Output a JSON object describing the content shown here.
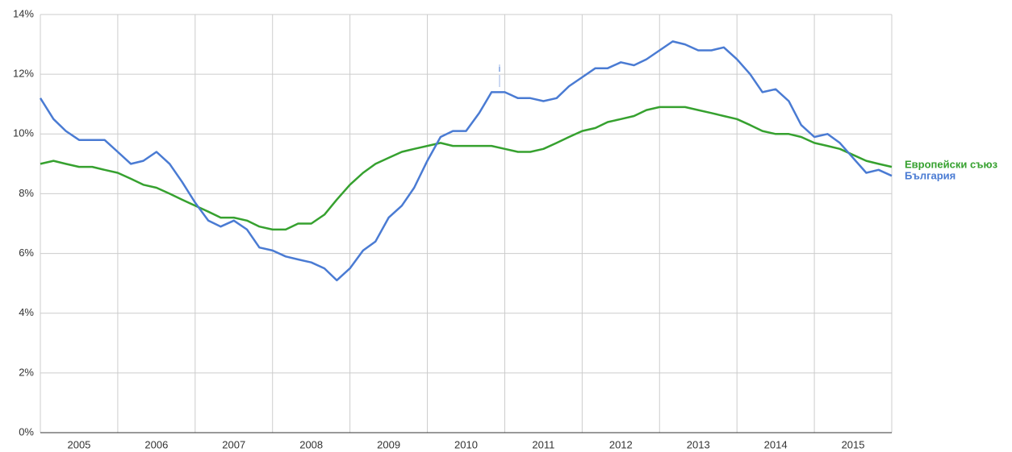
{
  "chart_data": {
    "type": "line",
    "annotation": "i",
    "x": [
      2005,
      2005.17,
      2005.33,
      2005.5,
      2005.67,
      2005.83,
      2006,
      2006.17,
      2006.33,
      2006.5,
      2006.67,
      2006.83,
      2007,
      2007.17,
      2007.33,
      2007.5,
      2007.67,
      2007.83,
      2008,
      2008.17,
      2008.33,
      2008.5,
      2008.67,
      2008.83,
      2009,
      2009.17,
      2009.33,
      2009.5,
      2009.67,
      2009.83,
      2010,
      2010.17,
      2010.33,
      2010.5,
      2010.67,
      2010.83,
      2011,
      2011.17,
      2011.33,
      2011.5,
      2011.67,
      2011.83,
      2012,
      2012.17,
      2012.33,
      2012.5,
      2012.67,
      2012.83,
      2013,
      2013.17,
      2013.33,
      2013.5,
      2013.67,
      2013.83,
      2014,
      2014.17,
      2014.33,
      2014.5,
      2014.67,
      2014.83,
      2015,
      2015.17,
      2015.33,
      2015.5,
      2015.67,
      2015.83,
      2016
    ],
    "series": [
      {
        "name": "Европейски съюз",
        "color": "#36a12f",
        "values": [
          9.0,
          9.1,
          9.0,
          8.9,
          8.9,
          8.8,
          8.7,
          8.5,
          8.3,
          8.2,
          8.0,
          7.8,
          7.6,
          7.4,
          7.2,
          7.2,
          7.1,
          6.9,
          6.8,
          6.8,
          7.0,
          7.0,
          7.3,
          7.8,
          8.3,
          8.7,
          9.0,
          9.2,
          9.4,
          9.5,
          9.6,
          9.7,
          9.6,
          9.6,
          9.6,
          9.6,
          9.5,
          9.4,
          9.4,
          9.5,
          9.7,
          9.9,
          10.1,
          10.2,
          10.4,
          10.5,
          10.6,
          10.8,
          10.9,
          10.9,
          10.9,
          10.8,
          10.7,
          10.6,
          10.5,
          10.3,
          10.1,
          10.0,
          10.0,
          9.9,
          9.7,
          9.6,
          9.5,
          9.3,
          9.1,
          9.0,
          8.9
        ]
      },
      {
        "name": "България",
        "color": "#4a7bd3",
        "values": [
          11.2,
          10.5,
          10.1,
          9.8,
          9.8,
          9.8,
          9.4,
          9.0,
          9.1,
          9.4,
          9.0,
          8.4,
          7.7,
          7.1,
          6.9,
          7.1,
          6.8,
          6.2,
          6.1,
          5.9,
          5.8,
          5.7,
          5.5,
          5.1,
          5.5,
          6.1,
          6.4,
          7.2,
          7.6,
          8.2,
          9.1,
          9.9,
          10.1,
          10.1,
          10.7,
          11.4,
          11.4,
          11.2,
          11.2,
          11.1,
          11.2,
          11.6,
          11.9,
          12.2,
          12.2,
          12.4,
          12.3,
          12.5,
          12.8,
          13.1,
          13.0,
          12.8,
          12.8,
          12.9,
          12.5,
          12.0,
          11.4,
          11.5,
          11.1,
          10.3,
          9.9,
          10.0,
          9.7,
          9.2,
          8.7,
          8.8,
          8.6
        ]
      }
    ],
    "xlim": [
      2005,
      2016
    ],
    "xticks": [
      {
        "value": 2005,
        "label": "2005"
      },
      {
        "value": 2006,
        "label": "2006"
      },
      {
        "value": 2007,
        "label": "2007"
      },
      {
        "value": 2008,
        "label": "2008"
      },
      {
        "value": 2009,
        "label": "2009"
      },
      {
        "value": 2010,
        "label": "2010"
      },
      {
        "value": 2011,
        "label": "2011"
      },
      {
        "value": 2012,
        "label": "2012"
      },
      {
        "value": 2013,
        "label": "2013"
      },
      {
        "value": 2014,
        "label": "2014"
      },
      {
        "value": 2015,
        "label": "2015"
      }
    ],
    "ylim": [
      0,
      14
    ],
    "yticks": [
      {
        "value": 0,
        "label": "0%"
      },
      {
        "value": 2,
        "label": "2%"
      },
      {
        "value": 4,
        "label": "4%"
      },
      {
        "value": 6,
        "label": "6%"
      },
      {
        "value": 8,
        "label": "8%"
      },
      {
        "value": 10,
        "label": "10%"
      },
      {
        "value": 12,
        "label": "12%"
      },
      {
        "value": 14,
        "label": "14%"
      }
    ],
    "grid": true
  }
}
